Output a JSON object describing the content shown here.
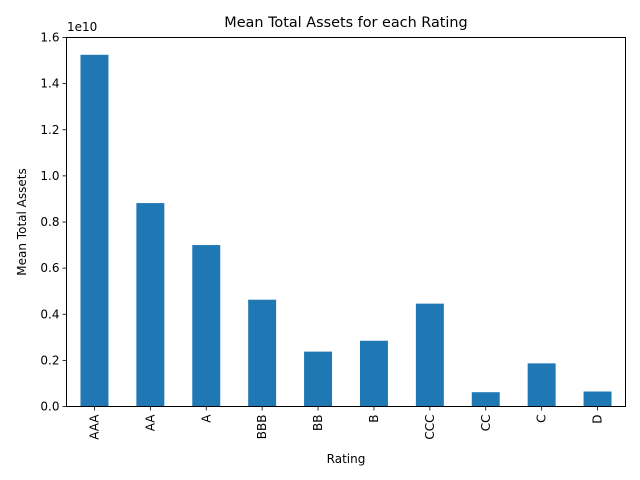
{
  "chart_data": {
    "type": "bar",
    "title": "Mean Total Assets for each Rating",
    "xlabel": "Rating",
    "ylabel": "Mean Total Assets",
    "offset_label": "1e10",
    "categories": [
      "AAA",
      "AA",
      "A",
      "BBB",
      "BB",
      "B",
      "CCC",
      "CC",
      "C",
      "D"
    ],
    "values": [
      15250000000,
      8820000000,
      7000000000,
      4630000000,
      2380000000,
      2850000000,
      4460000000,
      620000000,
      1870000000,
      650000000
    ],
    "ylim": [
      0,
      16000000000
    ],
    "yticks": [
      0,
      2000000000,
      4000000000,
      6000000000,
      8000000000,
      10000000000,
      12000000000,
      14000000000,
      16000000000
    ],
    "ytick_labels": [
      "0.0",
      "0.2",
      "0.4",
      "0.6",
      "0.8",
      "1.0",
      "1.2",
      "1.4",
      "1.6"
    ],
    "bar_color": "#1f77b4",
    "grid": false,
    "legend": "none"
  }
}
